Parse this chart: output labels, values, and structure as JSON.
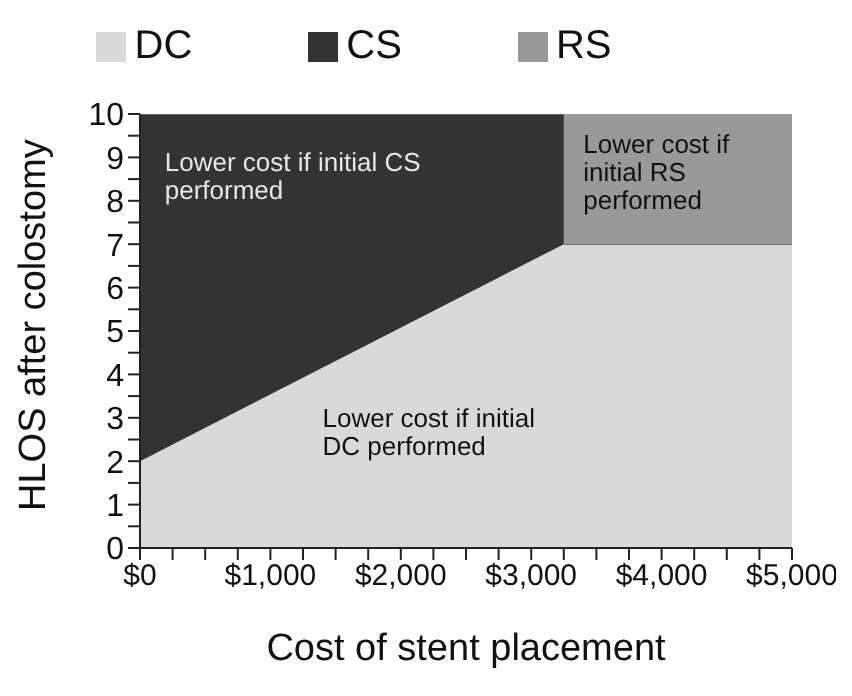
{
  "chart_data": {
    "type": "area",
    "stacked": true,
    "xlabel": "Cost of stent placement",
    "ylabel": "HLOS after colostomy",
    "x": [
      0,
      3250,
      3250,
      5000
    ],
    "series": [
      {
        "name": "DC",
        "color": "#d9d9d9",
        "values": [
          2,
          7,
          7,
          7
        ]
      },
      {
        "name": "CS",
        "color": "#333333",
        "values": [
          8,
          3,
          0,
          0
        ]
      },
      {
        "name": "RS",
        "color": "#999999",
        "values": [
          0,
          0,
          3,
          3
        ]
      }
    ],
    "xlim": [
      0,
      5000
    ],
    "xticks": [
      {
        "value": 0,
        "label": "$0"
      },
      {
        "value": 250,
        "label": null
      },
      {
        "value": 500,
        "label": null
      },
      {
        "value": 750,
        "label": null
      },
      {
        "value": 1000,
        "label": "$1,000"
      },
      {
        "value": 1250,
        "label": null
      },
      {
        "value": 1500,
        "label": null
      },
      {
        "value": 1750,
        "label": null
      },
      {
        "value": 2000,
        "label": "$2,000"
      },
      {
        "value": 2250,
        "label": null
      },
      {
        "value": 2500,
        "label": null
      },
      {
        "value": 2750,
        "label": null
      },
      {
        "value": 3000,
        "label": "$3,000"
      },
      {
        "value": 3250,
        "label": null
      },
      {
        "value": 3500,
        "label": null
      },
      {
        "value": 3750,
        "label": null
      },
      {
        "value": 4000,
        "label": "$4,000"
      },
      {
        "value": 4250,
        "label": null
      },
      {
        "value": 4500,
        "label": null
      },
      {
        "value": 4750,
        "label": null
      },
      {
        "value": 5000,
        "label": "$5,000"
      }
    ],
    "ylim": [
      0,
      10
    ],
    "yticks": [
      0,
      {
        "value": 0.5,
        "label": null
      },
      1,
      {
        "value": 1.5,
        "label": null
      },
      2,
      {
        "value": 2.5,
        "label": null
      },
      3,
      {
        "value": 3.5,
        "label": null
      },
      4,
      {
        "value": 4.5,
        "label": null
      },
      5,
      {
        "value": 5.5,
        "label": null
      },
      6,
      {
        "value": 6.5,
        "label": null
      },
      7,
      {
        "value": 7.5,
        "label": null
      },
      8,
      {
        "value": 8.5,
        "label": null
      },
      9,
      {
        "value": 9.5,
        "label": null
      },
      10
    ],
    "annotations": [
      "Lower cost if initial CS\nperformed",
      "Lower cost if\ninitial RS\nperformed",
      "Lower cost if initial\nDC performed"
    ],
    "legend": "top",
    "grid": false
  }
}
